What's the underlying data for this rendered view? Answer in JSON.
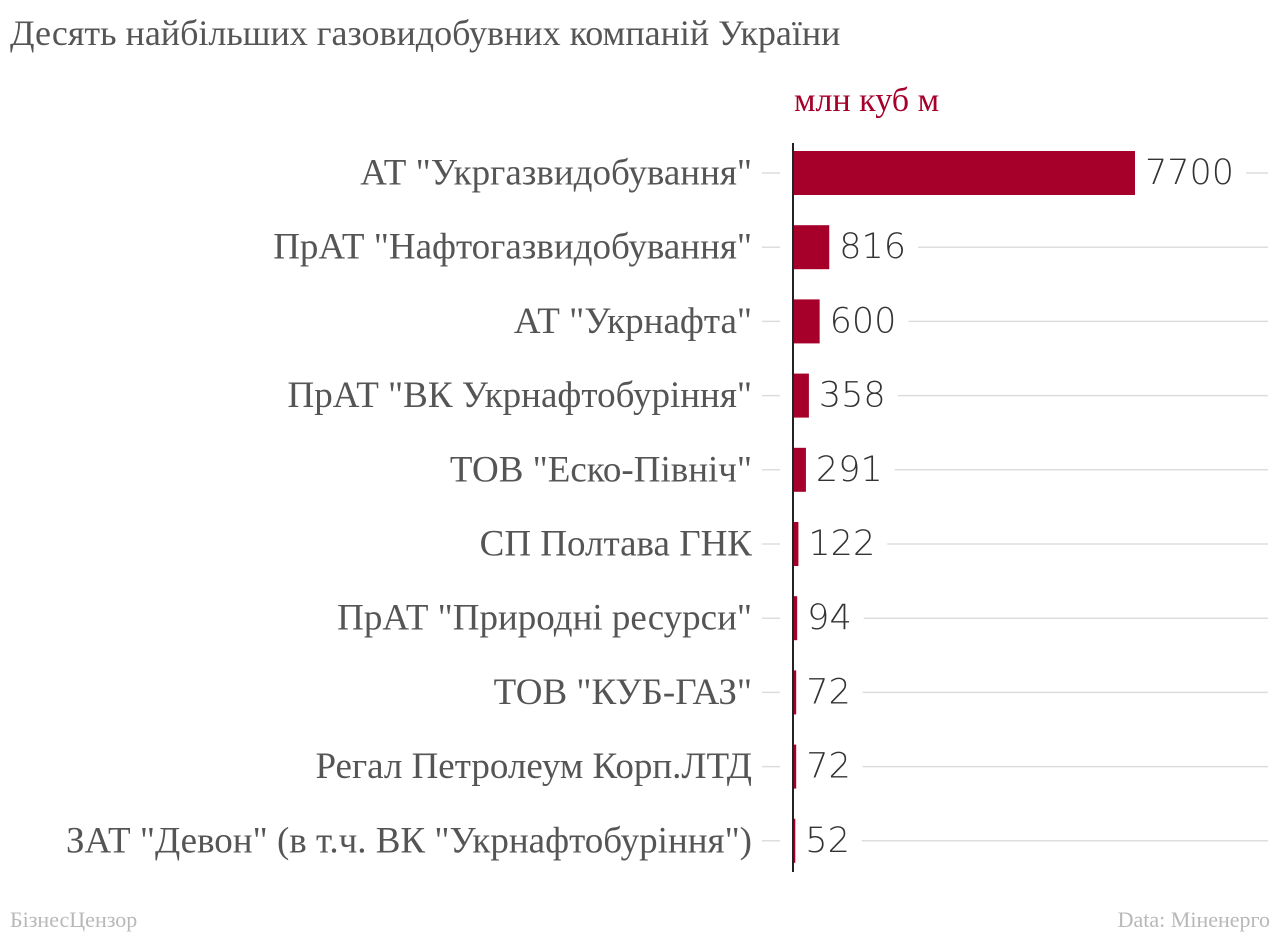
{
  "title": "Десять найбільших газовидобувних компаній України",
  "footer": {
    "left": "БізнесЦензор",
    "right": "Data: Міненерго"
  },
  "colors": {
    "bar": "#a6002a",
    "grid": "#dddddd",
    "axis": "#222222"
  },
  "chart_data": {
    "type": "bar",
    "orientation": "horizontal",
    "unit_label": "млн куб м",
    "categories": [
      "АТ \"Укргазвидобування\"",
      "ПрАТ \"Нафтогазвидобування\"",
      "АТ \"Укрнафта\"",
      "ПрАТ \"ВК Укрнафтобуріння\"",
      "ТОВ \"Еско-Північ\"",
      "СП Полтава ГНК",
      "ПрАТ \"Природні ресурси\"",
      "ТОВ \"КУБ-ГАЗ\"",
      "Регал Петролеум Корп.ЛТД",
      "ЗАТ \"Девон\" (в т.ч. ВК \"Укрнафтобуріння\")"
    ],
    "values": [
      7700,
      816,
      600,
      358,
      291,
      122,
      94,
      72,
      72,
      52
    ],
    "xlim": [
      0,
      7700
    ],
    "grid": true,
    "legend": false,
    "data_labels": true
  }
}
